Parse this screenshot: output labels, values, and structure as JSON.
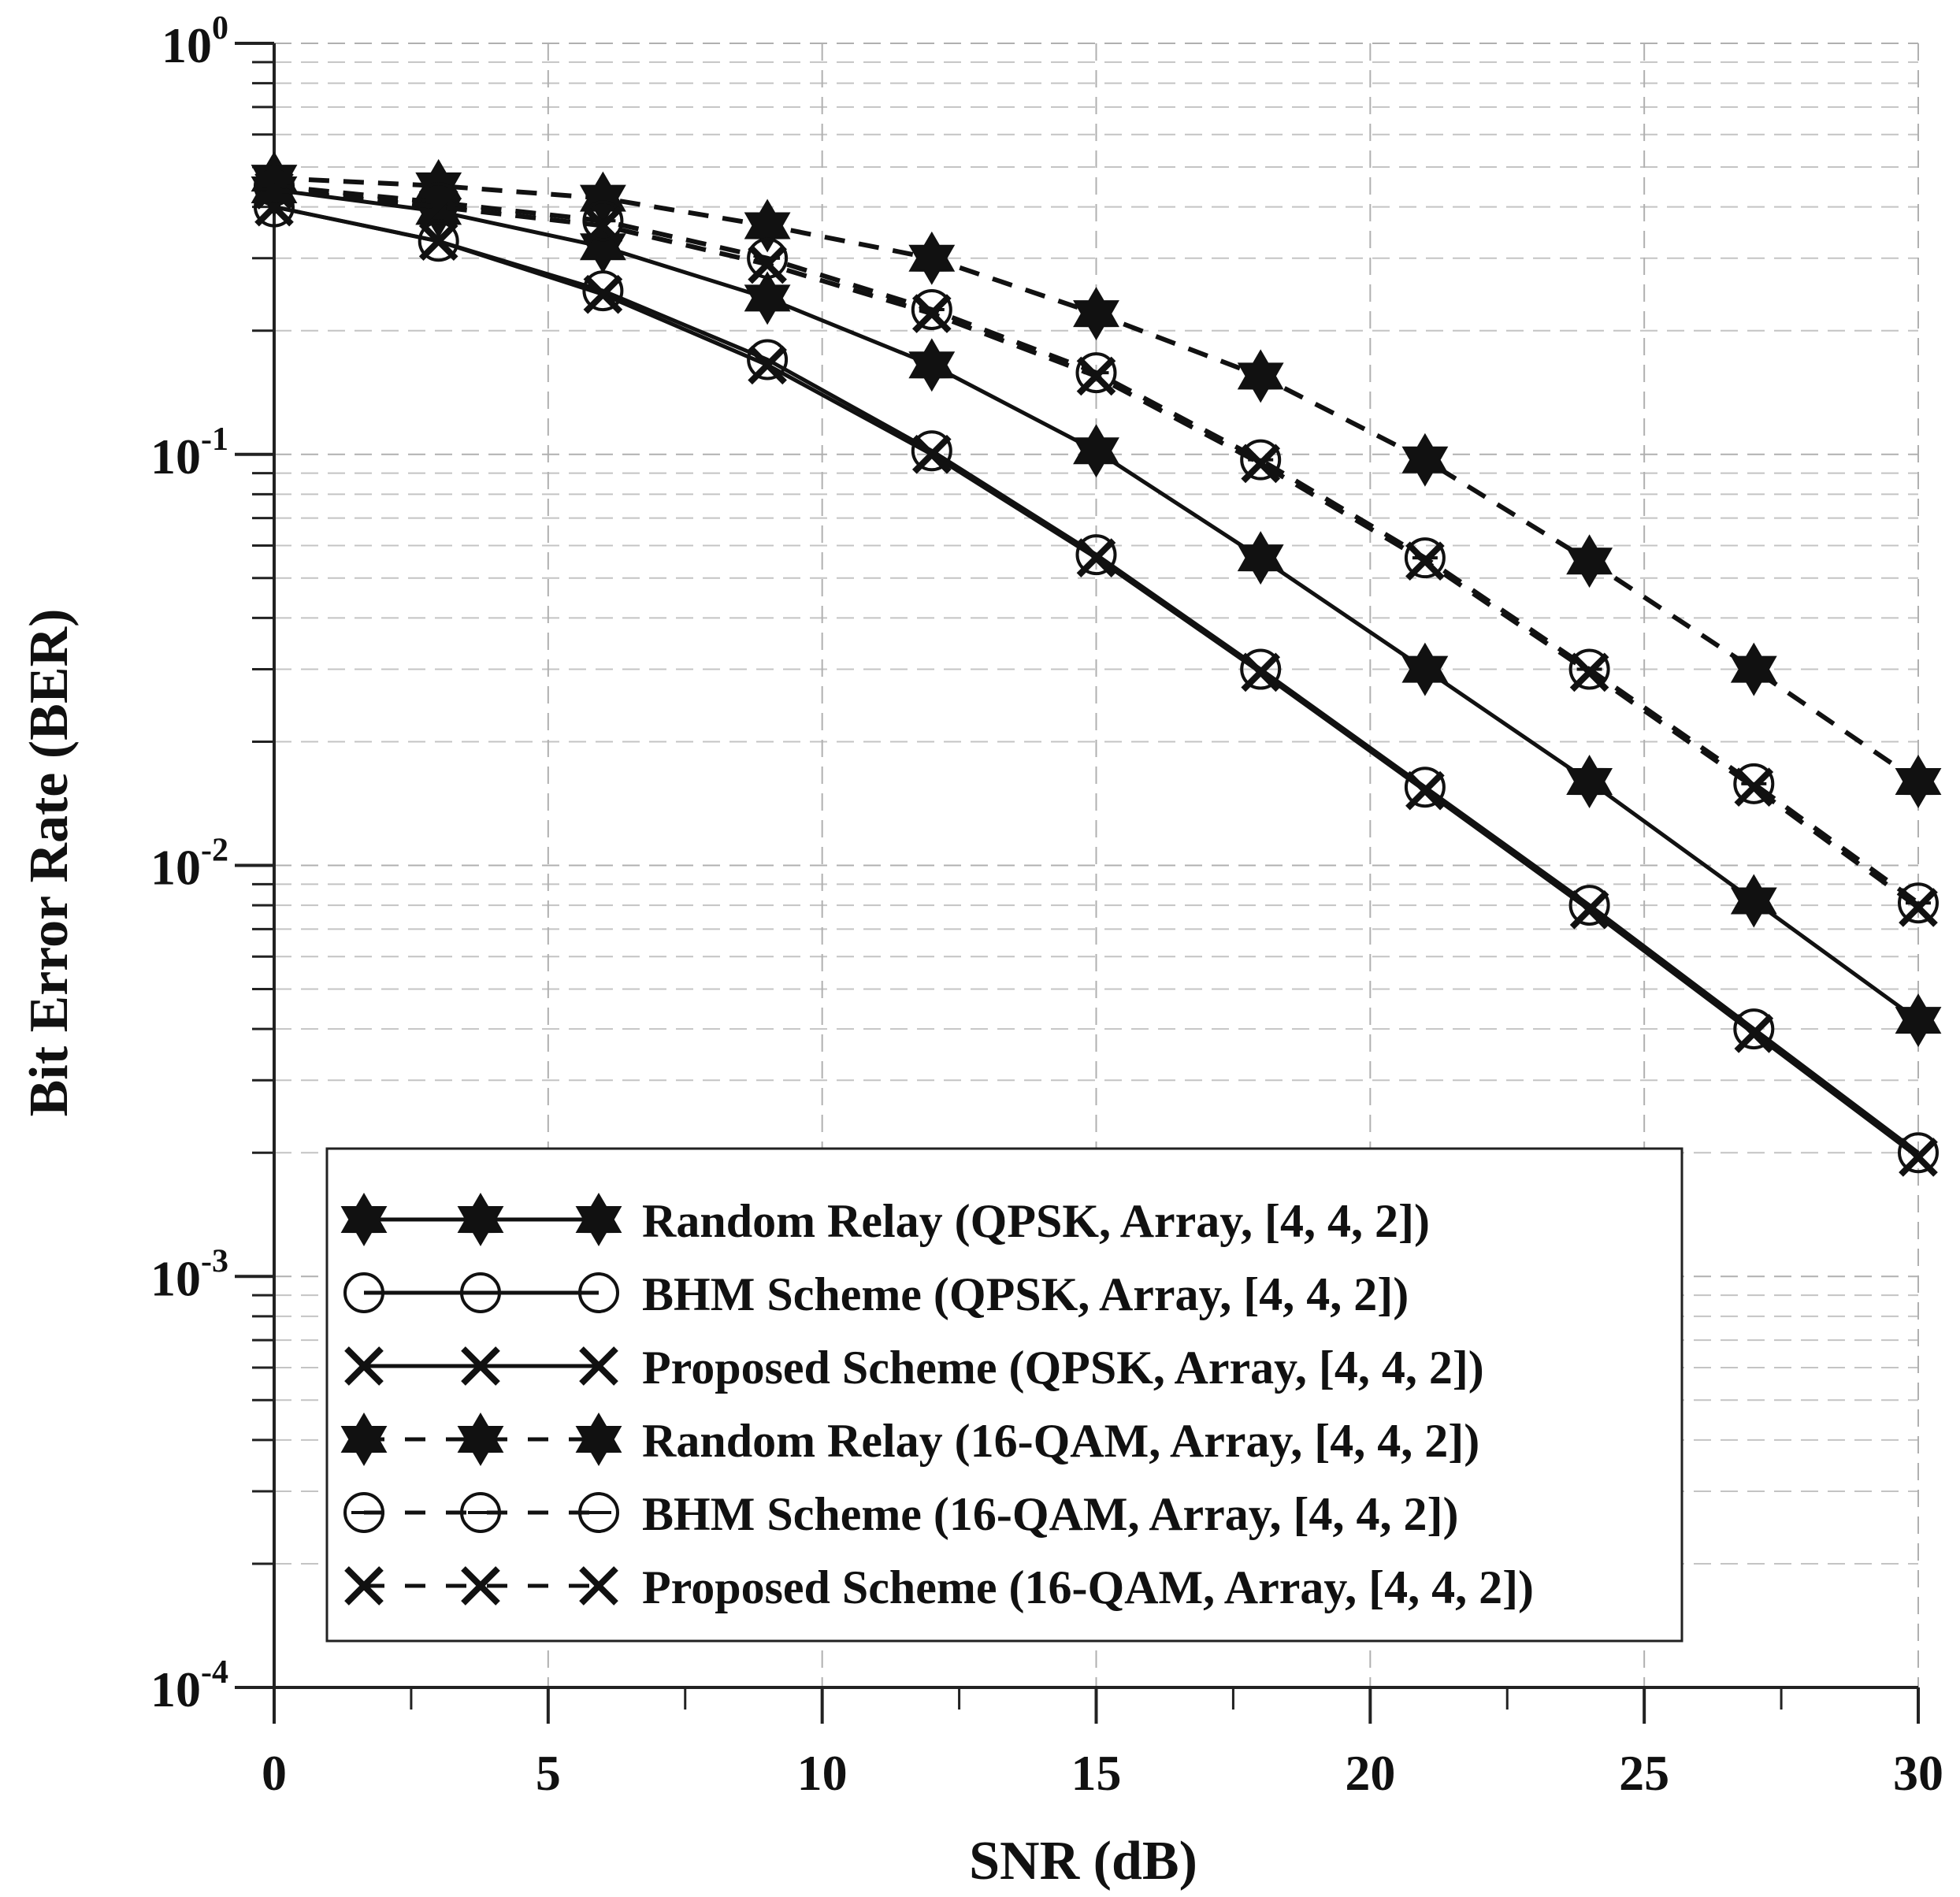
{
  "chart_data": {
    "type": "line",
    "title": "",
    "xlabel": "SNR (dB)",
    "ylabel": "Bit Error Rate (BER)",
    "xlim": [
      0,
      30
    ],
    "ylim": [
      0.0001,
      1
    ],
    "yscale": "log",
    "grid": true,
    "legend_position": "bottom-center",
    "x_ticks": [
      0,
      5,
      10,
      15,
      20,
      25,
      30
    ],
    "x_tick_labels": [
      "0",
      "5",
      "10",
      "15",
      "20",
      "25",
      "30"
    ],
    "y_ticks": [
      {
        "value": 1,
        "base": "10",
        "exp": "0"
      },
      {
        "value": 0.1,
        "base": "10",
        "exp": "-1"
      },
      {
        "value": 0.01,
        "base": "10",
        "exp": "-2"
      },
      {
        "value": 0.001,
        "base": "10",
        "exp": "-3"
      },
      {
        "value": 0.0001,
        "base": "10",
        "exp": "-4"
      }
    ],
    "x": [
      0,
      3,
      6,
      9,
      12,
      15,
      18,
      21,
      24,
      27,
      30
    ],
    "series": [
      {
        "name": "Random Relay (QPSK, Array, [4, 4, 2])",
        "marker": "star",
        "dash": "solid",
        "values": [
          0.44,
          0.39,
          0.32,
          0.24,
          0.165,
          0.102,
          0.056,
          0.03,
          0.016,
          0.0082,
          0.0042
        ]
      },
      {
        "name": "BHM Scheme (QPSK, Array, [4, 4, 2])",
        "marker": "circle",
        "dash": "solid",
        "values": [
          0.4,
          0.33,
          0.25,
          0.17,
          0.102,
          0.057,
          0.03,
          0.0155,
          0.008,
          0.004,
          0.002
        ]
      },
      {
        "name": "Proposed Scheme (QPSK, Array, [4, 4, 2])",
        "marker": "x",
        "dash": "solid",
        "values": [
          0.4,
          0.33,
          0.245,
          0.165,
          0.1,
          0.056,
          0.0295,
          0.0152,
          0.0078,
          0.0039,
          0.00195
        ]
      },
      {
        "name": "Random Relay (16-QAM, Array, [4, 4, 2])",
        "marker": "star",
        "dash": "dashed",
        "values": [
          0.47,
          0.45,
          0.42,
          0.36,
          0.3,
          0.22,
          0.155,
          0.097,
          0.055,
          0.03,
          0.016
        ]
      },
      {
        "name": "BHM Scheme (16-QAM, Array, [4, 4, 2])",
        "marker": "circle",
        "dash": "dashed",
        "values": [
          0.45,
          0.41,
          0.37,
          0.3,
          0.225,
          0.158,
          0.097,
          0.056,
          0.03,
          0.0158,
          0.0081
        ]
      },
      {
        "name": "Proposed Scheme (16-QAM, Array, [4, 4, 2])",
        "marker": "x",
        "dash": "dashed",
        "values": [
          0.44,
          0.4,
          0.36,
          0.29,
          0.22,
          0.155,
          0.095,
          0.055,
          0.0295,
          0.0155,
          0.0079
        ]
      }
    ]
  }
}
